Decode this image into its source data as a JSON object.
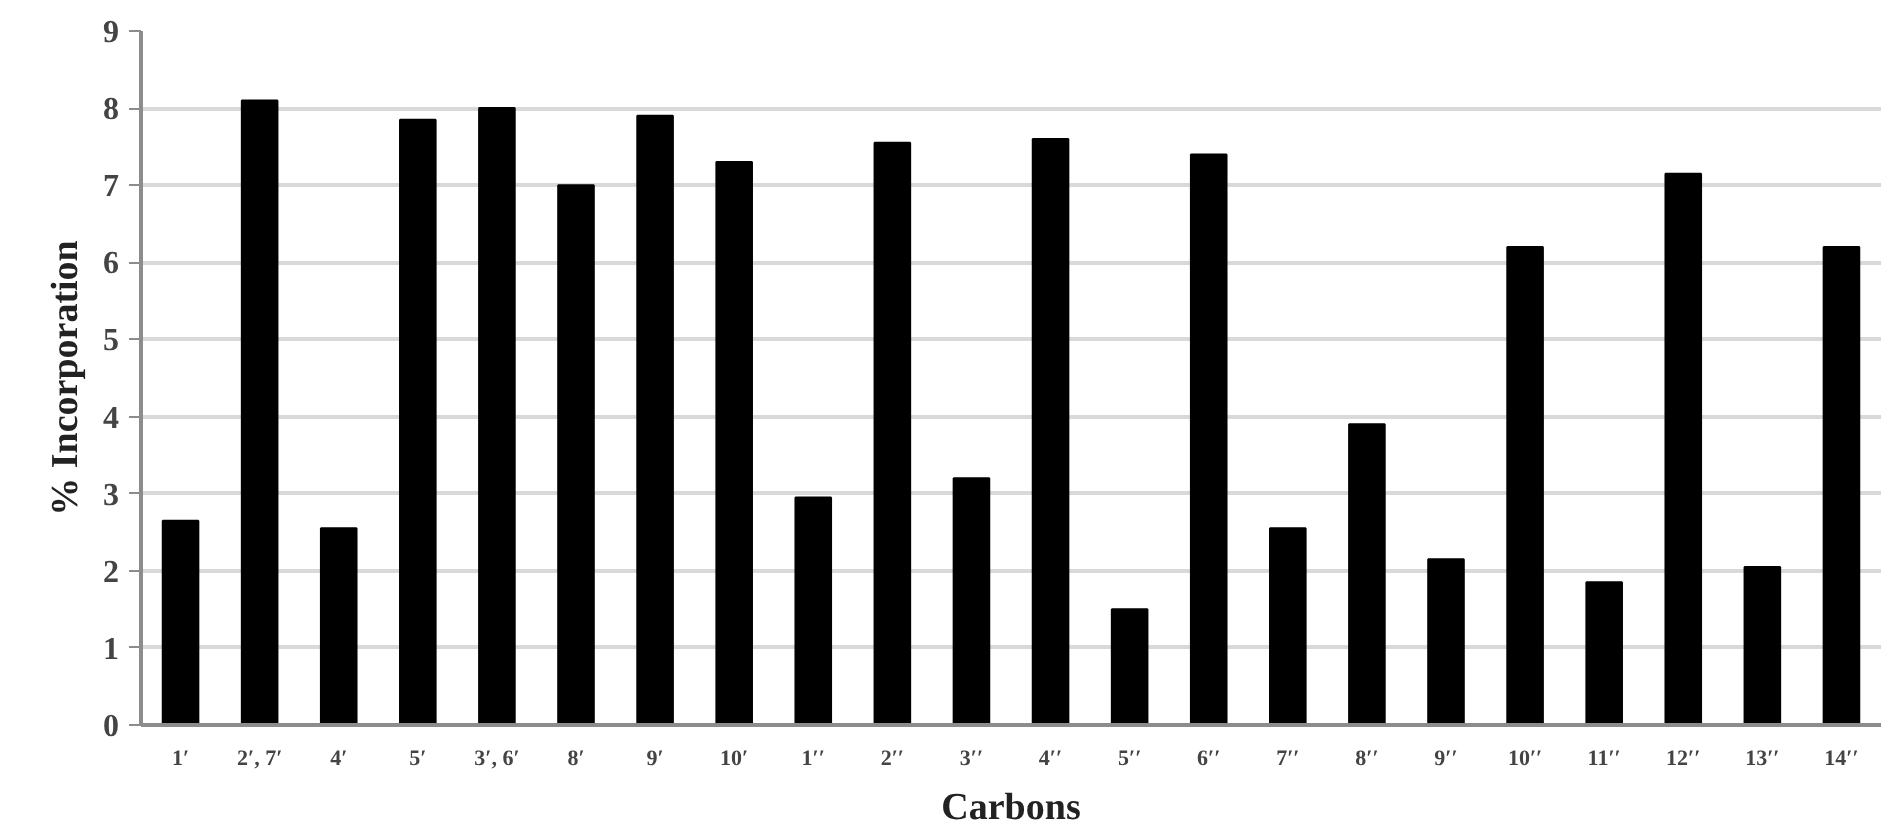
{
  "chart_data": {
    "type": "bar",
    "xlabel": "Carbons",
    "ylabel": "% Incorporation",
    "categories": [
      "1′",
      "2′, 7′",
      "4′",
      "5′",
      "3′, 6′",
      "8′",
      "9′",
      "10′",
      "1′′",
      "2′′",
      "3′′",
      "4′′",
      "5′′",
      "6′′",
      "7′′",
      "8′′",
      "9′′",
      "10′′",
      "11′′",
      "12′′",
      "13′′",
      "14′′"
    ],
    "values": [
      2.65,
      8.1,
      2.55,
      7.85,
      8.0,
      7.0,
      7.9,
      7.3,
      2.95,
      7.55,
      3.2,
      7.6,
      1.5,
      7.4,
      2.55,
      3.9,
      2.15,
      6.2,
      1.85,
      7.15,
      2.05,
      6.2
    ],
    "color": "#000000",
    "ylim": [
      0,
      9
    ],
    "yticks": [
      0,
      1,
      2,
      3,
      4,
      5,
      6,
      7,
      8,
      9
    ],
    "grid": "y"
  }
}
